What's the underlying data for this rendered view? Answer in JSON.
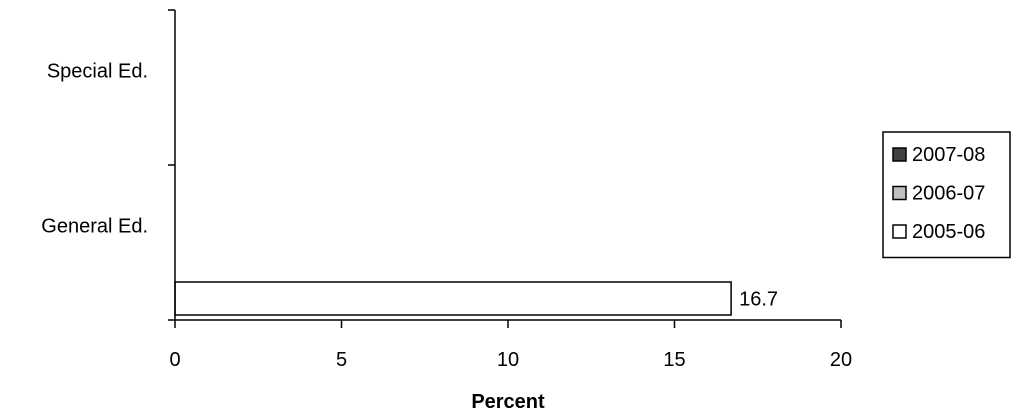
{
  "chart_data": {
    "type": "bar",
    "orientation": "horizontal",
    "categories": [
      "Special Ed.",
      "General Ed."
    ],
    "series": [
      {
        "name": "2007-08",
        "color": "#404040",
        "values": [
          null,
          null
        ]
      },
      {
        "name": "2006-07",
        "color": "#c0c0c0",
        "values": [
          null,
          null
        ]
      },
      {
        "name": "2005-06",
        "color": "#ffffff",
        "values": [
          null,
          16.7
        ]
      }
    ],
    "data_labels": [
      {
        "series": "2005-06",
        "category": "General Ed.",
        "text": "16.7"
      }
    ],
    "xlabel": "Percent",
    "xlim": [
      0,
      20
    ],
    "xticks": [
      "0",
      "5",
      "10",
      "15",
      "20"
    ],
    "grid": false,
    "legend_position": "right"
  }
}
